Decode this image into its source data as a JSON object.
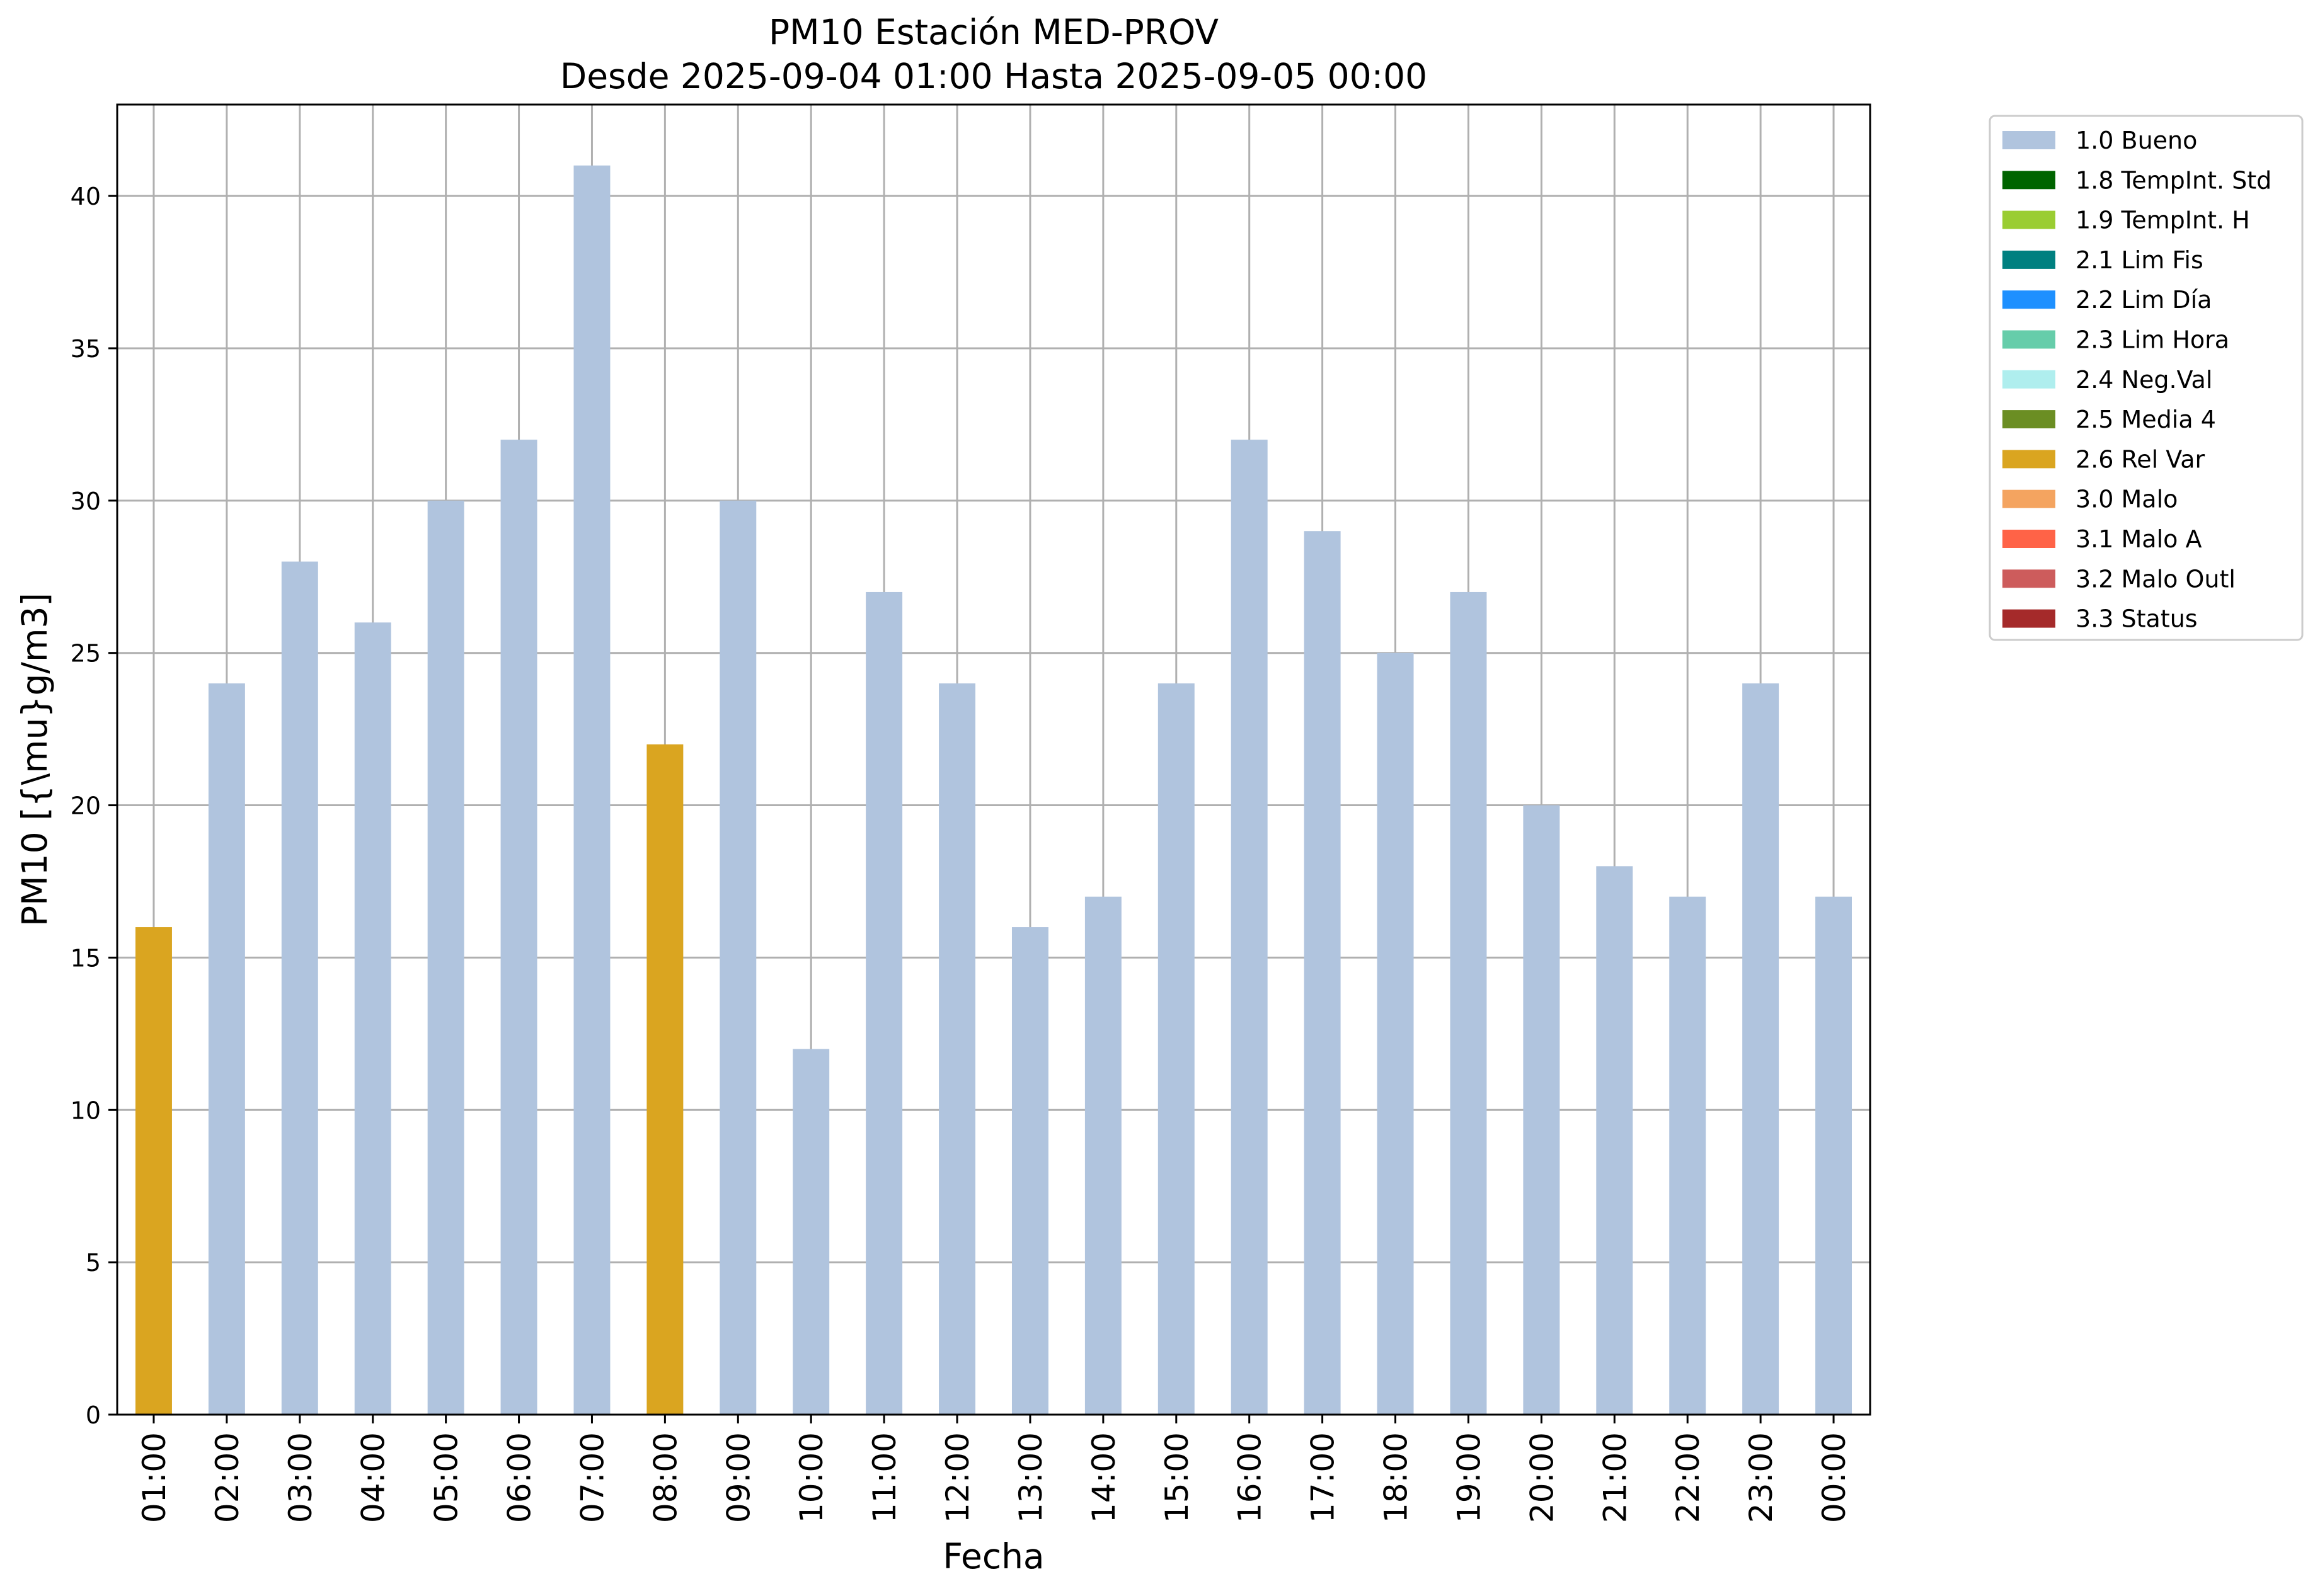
{
  "chart_data": {
    "type": "bar",
    "title": "PM10 Estación MED-PROV",
    "subtitle": "Desde 2025-09-04 01:00 Hasta 2025-09-05 00:00",
    "xlabel": "Fecha",
    "ylabel": "PM10 [{\\mu}g/m3]",
    "ylim": [
      0,
      43
    ],
    "yticks": [
      0,
      5,
      10,
      15,
      20,
      25,
      30,
      35,
      40
    ],
    "grid": true,
    "legend_position": "outside-right-top",
    "categories": [
      "01:00",
      "02:00",
      "03:00",
      "04:00",
      "05:00",
      "06:00",
      "07:00",
      "08:00",
      "09:00",
      "10:00",
      "11:00",
      "12:00",
      "13:00",
      "14:00",
      "15:00",
      "16:00",
      "17:00",
      "18:00",
      "19:00",
      "20:00",
      "21:00",
      "22:00",
      "23:00",
      "00:00"
    ],
    "values": [
      16,
      24,
      28,
      26,
      30,
      32,
      41,
      22,
      30,
      12,
      27,
      24,
      16,
      17,
      24,
      32,
      29,
      25,
      27,
      20,
      18,
      17,
      24,
      17
    ],
    "flags": [
      "2.6 Rel Var",
      "1.0 Bueno",
      "1.0 Bueno",
      "1.0 Bueno",
      "1.0 Bueno",
      "1.0 Bueno",
      "1.0 Bueno",
      "2.6 Rel Var",
      "1.0 Bueno",
      "1.0 Bueno",
      "1.0 Bueno",
      "1.0 Bueno",
      "1.0 Bueno",
      "1.0 Bueno",
      "1.0 Bueno",
      "1.0 Bueno",
      "1.0 Bueno",
      "1.0 Bueno",
      "1.0 Bueno",
      "1.0 Bueno",
      "1.0 Bueno",
      "1.0 Bueno",
      "1.0 Bueno",
      "1.0 Bueno"
    ],
    "legend": [
      {
        "label": "1.0 Bueno",
        "color": "#b0c4de"
      },
      {
        "label": "1.8 TempInt. Std",
        "color": "#006400"
      },
      {
        "label": "1.9 TempInt. H",
        "color": "#9acd32"
      },
      {
        "label": "2.1 Lim Fis",
        "color": "#008080"
      },
      {
        "label": "2.2 Lim Día",
        "color": "#1e90ff"
      },
      {
        "label": "2.3 Lim Hora",
        "color": "#66cdaa"
      },
      {
        "label": "2.4 Neg.Val",
        "color": "#afeeee"
      },
      {
        "label": "2.5 Media 4",
        "color": "#6b8e23"
      },
      {
        "label": "2.6 Rel Var",
        "color": "#daa520"
      },
      {
        "label": "3.0 Malo",
        "color": "#f4a460"
      },
      {
        "label": "3.1 Malo A",
        "color": "#ff6347"
      },
      {
        "label": "3.2 Malo Outl",
        "color": "#cd5c5c"
      },
      {
        "label": "3.3 Status",
        "color": "#a52a2a"
      }
    ]
  }
}
